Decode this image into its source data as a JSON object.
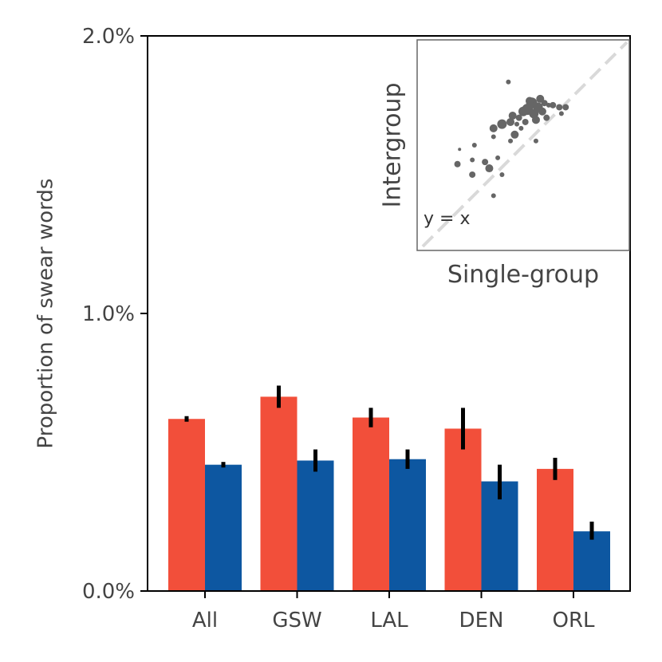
{
  "chart_data": {
    "type": "bar",
    "ylabel": "Proportion of swear words",
    "xlabel": "",
    "ylim": [
      0.0,
      2.0
    ],
    "yticks": [
      "0.0%",
      "1.0%",
      "2.0%"
    ],
    "ytick_values": [
      0.0,
      1.0,
      2.0
    ],
    "categories": [
      "All",
      "GSW",
      "LAL",
      "DEN",
      "ORL"
    ],
    "series": [
      {
        "name": "Intergroup",
        "color": "#f24f3a",
        "values": [
          0.62,
          0.7,
          0.625,
          0.585,
          0.44
        ],
        "err_low": [
          0.61,
          0.66,
          0.59,
          0.51,
          0.4
        ],
        "err_high": [
          0.63,
          0.74,
          0.66,
          0.66,
          0.48
        ]
      },
      {
        "name": "Single-group",
        "color": "#0d57a1",
        "values": [
          0.455,
          0.47,
          0.475,
          0.395,
          0.215
        ],
        "err_low": [
          0.445,
          0.43,
          0.44,
          0.33,
          0.185
        ],
        "err_high": [
          0.465,
          0.51,
          0.51,
          0.455,
          0.25
        ]
      }
    ],
    "inset": {
      "type": "scatter",
      "xlabel": "Single-group",
      "ylabel": "Intergroup",
      "annotation": "y = x",
      "point_color": "#666666",
      "diag_color": "#d9d9d9",
      "xlim": [
        0,
        1
      ],
      "ylim": [
        0,
        1
      ],
      "points": [
        {
          "x": 0.43,
          "y": 0.8,
          "s": 3
        },
        {
          "x": 0.36,
          "y": 0.58,
          "s": 5
        },
        {
          "x": 0.4,
          "y": 0.6,
          "s": 6
        },
        {
          "x": 0.44,
          "y": 0.61,
          "s": 5
        },
        {
          "x": 0.48,
          "y": 0.63,
          "s": 4
        },
        {
          "x": 0.45,
          "y": 0.64,
          "s": 5
        },
        {
          "x": 0.5,
          "y": 0.66,
          "s": 6
        },
        {
          "x": 0.52,
          "y": 0.67,
          "s": 7
        },
        {
          "x": 0.55,
          "y": 0.65,
          "s": 6
        },
        {
          "x": 0.57,
          "y": 0.68,
          "s": 6
        },
        {
          "x": 0.54,
          "y": 0.7,
          "s": 7
        },
        {
          "x": 0.58,
          "y": 0.72,
          "s": 5
        },
        {
          "x": 0.53,
          "y": 0.71,
          "s": 5
        },
        {
          "x": 0.6,
          "y": 0.7,
          "s": 4
        },
        {
          "x": 0.62,
          "y": 0.69,
          "s": 3
        },
        {
          "x": 0.64,
          "y": 0.69,
          "s": 4
        },
        {
          "x": 0.67,
          "y": 0.68,
          "s": 4
        },
        {
          "x": 0.7,
          "y": 0.68,
          "s": 4
        },
        {
          "x": 0.68,
          "y": 0.65,
          "s": 3
        },
        {
          "x": 0.49,
          "y": 0.58,
          "s": 3
        },
        {
          "x": 0.46,
          "y": 0.55,
          "s": 5
        },
        {
          "x": 0.56,
          "y": 0.62,
          "s": 5
        },
        {
          "x": 0.59,
          "y": 0.66,
          "s": 5
        },
        {
          "x": 0.51,
          "y": 0.61,
          "s": 4
        },
        {
          "x": 0.44,
          "y": 0.52,
          "s": 3
        },
        {
          "x": 0.61,
          "y": 0.63,
          "s": 4
        },
        {
          "x": 0.47,
          "y": 0.6,
          "s": 3
        },
        {
          "x": 0.36,
          "y": 0.54,
          "s": 3
        },
        {
          "x": 0.27,
          "y": 0.5,
          "s": 3
        },
        {
          "x": 0.26,
          "y": 0.43,
          "s": 3
        },
        {
          "x": 0.32,
          "y": 0.42,
          "s": 4
        },
        {
          "x": 0.38,
          "y": 0.44,
          "s": 3
        },
        {
          "x": 0.26,
          "y": 0.36,
          "s": 4
        },
        {
          "x": 0.34,
          "y": 0.39,
          "s": 5
        },
        {
          "x": 0.2,
          "y": 0.48,
          "s": 2
        },
        {
          "x": 0.19,
          "y": 0.41,
          "s": 4
        },
        {
          "x": 0.36,
          "y": 0.26,
          "s": 3
        },
        {
          "x": 0.4,
          "y": 0.36,
          "s": 3
        },
        {
          "x": 0.56,
          "y": 0.52,
          "s": 3
        }
      ]
    }
  }
}
